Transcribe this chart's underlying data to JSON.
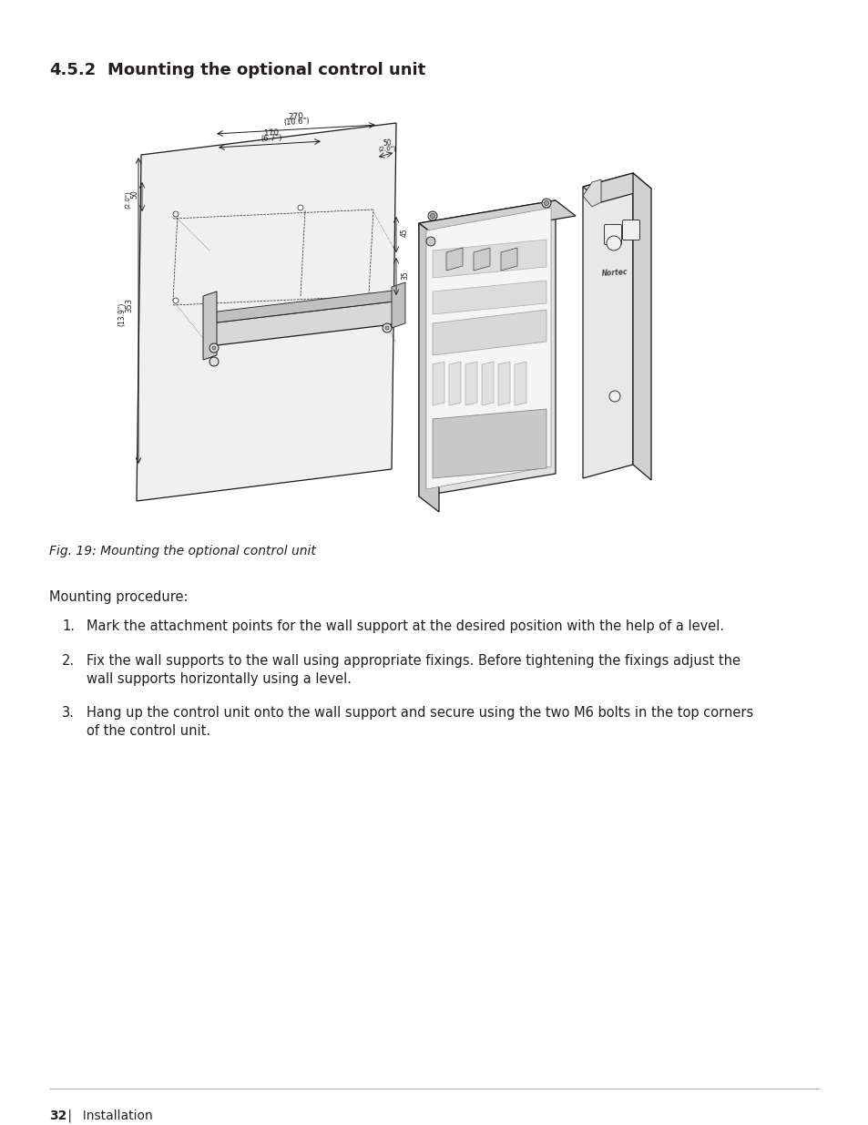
{
  "title_number": "4.5.2",
  "title_text": "Mounting the optional control unit",
  "fig_caption": "Fig. 19: Mounting the optional control unit",
  "procedure_heading": "Mounting procedure:",
  "step1": "Mark the attachment points for the wall support at the desired position with the help of a level.",
  "step2_line1": "Fix the wall supports to the wall using appropriate fixings. Before tightening the fixings adjust the",
  "step2_line2": "wall supports horizontally using a level.",
  "step3_line1": "Hang up the control unit onto the wall support and secure using the two M6 bolts in the top corners",
  "step3_line2": "of the control unit.",
  "footer_num": "32",
  "footer_sep": " |",
  "footer_rest": "  Installation",
  "bg_color": "#ffffff",
  "text_color": "#231f20",
  "heading_fontsize": 13,
  "body_fontsize": 10.5,
  "caption_fontsize": 10,
  "footer_fontsize": 10,
  "dim_270": "270",
  "dim_270_in": "(10.6\")",
  "dim_50": "50",
  "dim_50_in": "(2.0\")",
  "dim_170": "170",
  "dim_170_in": "(6.7\")",
  "dim_353": "353",
  "dim_353_in": "(13.9\")",
  "dim_45": "45",
  "dim_35": "35",
  "dim_50b": "50",
  "dim_50b_in": "(2.0\")"
}
